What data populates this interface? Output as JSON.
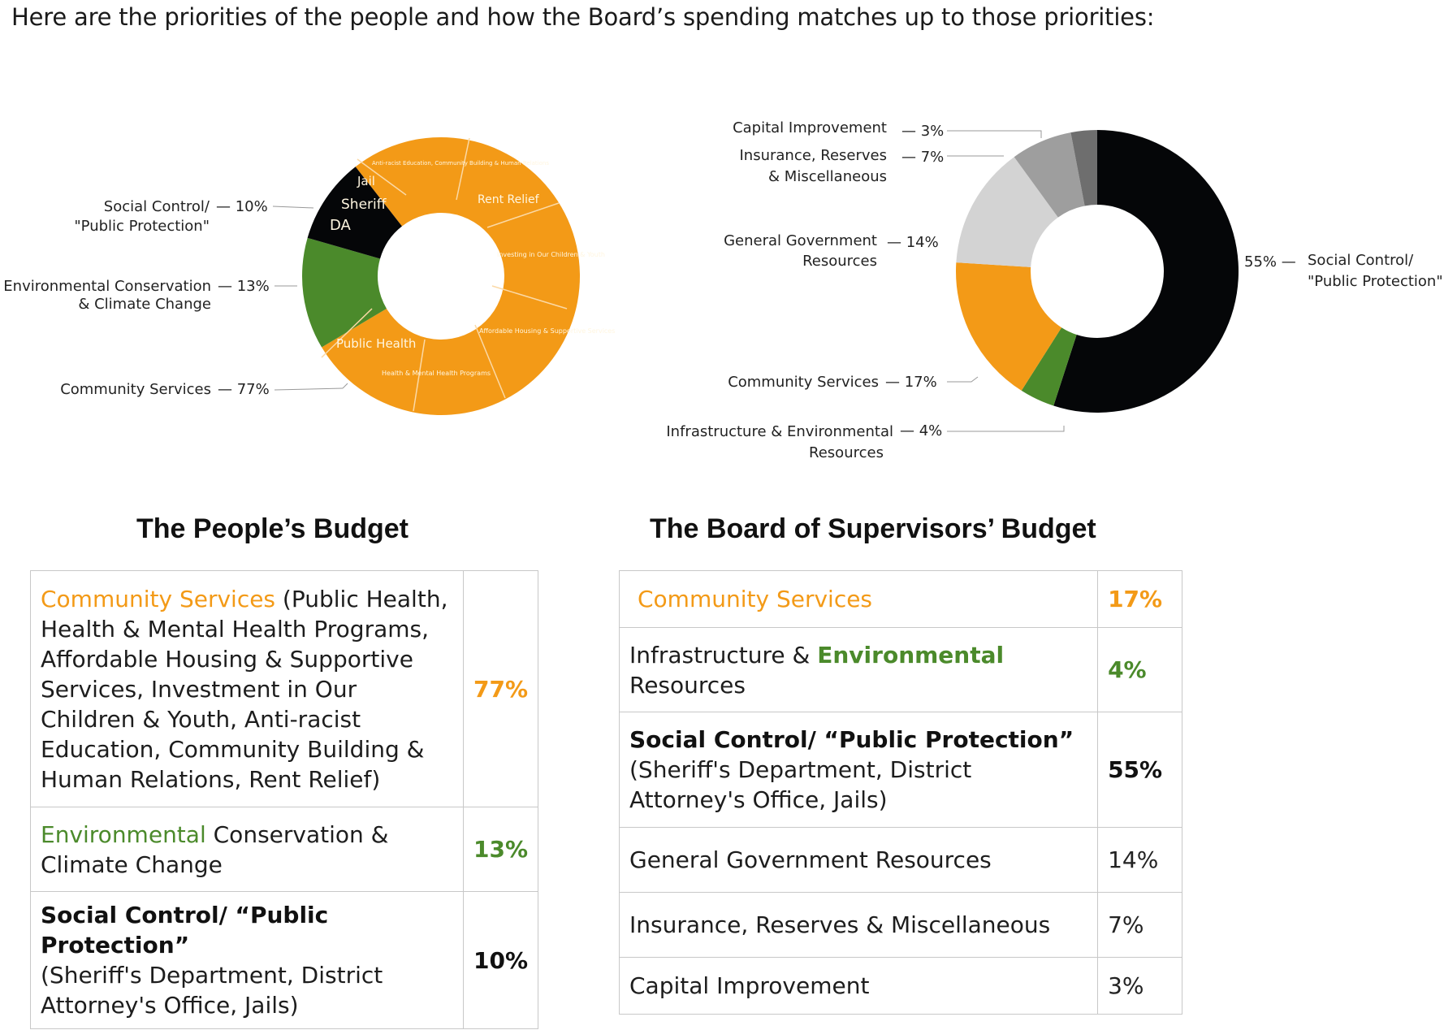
{
  "intro": "Here are the priorities of the people and how the Board’s spending matches up to those priorities:",
  "colors": {
    "orange": "#f39a17",
    "green": "#4b8a2b",
    "black": "#050608",
    "light_gray": "#d3d3d3",
    "mid_gray": "#9e9e9e",
    "dark_gray": "#6e6e6e"
  },
  "chart_data": [
    {
      "type": "pie",
      "title": "The People’s Budget",
      "slices": [
        {
          "label": "Community Services",
          "value": 77,
          "color": "#f39a17"
        },
        {
          "label": "Environmental Conservation & Climate Change",
          "value": 13,
          "color": "#4b8a2b"
        },
        {
          "label": "Social Control/ \"Public Protection\"",
          "value": 10,
          "color": "#050608"
        }
      ],
      "callouts": [
        {
          "line1": "Social Control/",
          "line2": "\"Public Protection\"",
          "pct": "— 10%"
        },
        {
          "line1": "Environmental Conservation",
          "line2": "& Climate Change",
          "pct": "— 13%"
        },
        {
          "line1": "Community Services",
          "line2": "",
          "pct": "— 77%"
        }
      ],
      "inner_labels": [
        "Jail",
        "Sheriff",
        "DA",
        "Rent Relief",
        "Public Health",
        "Health & Mental Health Programs",
        "Affordable Housing & Supportive Services",
        "Investing in Our Children & Youth",
        "Anti-racist Education, Community Building & Human Relations"
      ]
    },
    {
      "type": "pie",
      "title": "The Board of Supervisors’ Budget",
      "slices": [
        {
          "label": "Social Control/ \"Public Protection\"",
          "value": 55,
          "color": "#050608"
        },
        {
          "label": "Infrastructure & Environmental Resources",
          "value": 4,
          "color": "#4b8a2b"
        },
        {
          "label": "Community Services",
          "value": 17,
          "color": "#f39a17"
        },
        {
          "label": "General Government Resources",
          "value": 14,
          "color": "#d3d3d3"
        },
        {
          "label": "Insurance, Reserves & Miscellaneous",
          "value": 7,
          "color": "#9e9e9e"
        },
        {
          "label": "Capital Improvement",
          "value": 3,
          "color": "#6e6e6e"
        }
      ],
      "callouts": [
        {
          "line1": "Capital Improvement",
          "line2": "",
          "pct": "— 3%"
        },
        {
          "line1": "Insurance, Reserves",
          "line2": "& Miscellaneous",
          "pct": "— 7%"
        },
        {
          "line1": "General Government",
          "line2": "Resources",
          "pct": "— 14%"
        },
        {
          "line1": "Community Services",
          "line2": "",
          "pct": "— 17%"
        },
        {
          "line1": "Infrastructure & Environmental",
          "line2": "Resources",
          "pct": "— 4%"
        },
        {
          "line1": "Social Control/",
          "line2": "\"Public Protection\"",
          "pct": "55% —"
        }
      ]
    }
  ],
  "people": {
    "title": "The People’s Budget",
    "rows": [
      {
        "head": "Community Services",
        "rest": " (Public Health, Health & Mental Health Programs, Affordable Housing & Supportive Services, Investment in Our Children & Youth, Anti-racist Education, Community Building & Human Relations, Rent Relief)",
        "pct": "77%"
      },
      {
        "head": "Environmental",
        "rest": " Conservation & Climate Change",
        "pct": "13%"
      },
      {
        "head": "Social Control/ “Public Protection”",
        "rest": "(Sheriff's Department, District Attorney's Office, Jails)",
        "pct": "10%"
      }
    ]
  },
  "board": {
    "title": "The Board of Supervisors’ Budget",
    "rows": [
      {
        "head": "Community Services",
        "pct": "17%"
      },
      {
        "pre": "Infrastructure & ",
        "head": "Environmental",
        "rest": " Resources",
        "pct": "4%"
      },
      {
        "head": "Social Control/ “Public Protection”",
        "rest": "(Sheriff's Department, District Attorney's Office, Jails)",
        "pct": "55%"
      },
      {
        "text": "General Government Resources",
        "pct": "14%"
      },
      {
        "text": "Insurance, Reserves & Miscellaneous",
        "pct": "7%"
      },
      {
        "text": "Capital Improvement",
        "pct": "3%"
      }
    ]
  }
}
